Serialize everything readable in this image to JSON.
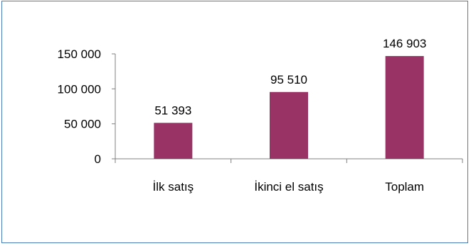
{
  "chart_data": {
    "type": "bar",
    "title": "",
    "xlabel": "",
    "ylabel": "",
    "categories": [
      "İlk satış",
      "İkinci el satış",
      "Toplam"
    ],
    "values": [
      51393,
      95510,
      146903
    ],
    "data_labels": [
      "51 393",
      "95 510",
      "146 903"
    ],
    "y_ticks": [
      0,
      50000,
      100000,
      150000
    ],
    "y_tick_labels": [
      "0",
      "50 000",
      "100 000",
      "150 000"
    ],
    "ylim": [
      0,
      150000
    ],
    "grid": false,
    "legend": "none",
    "bar_color": "#993366",
    "frame_color": "#4a7ebb"
  }
}
